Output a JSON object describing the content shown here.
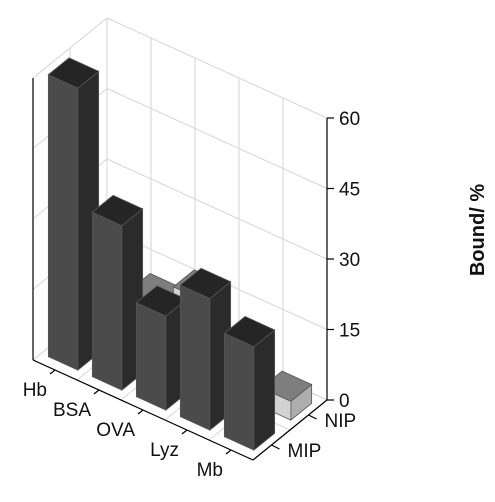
{
  "chart_data": {
    "type": "bar",
    "title": "",
    "zlabel": "Bound/ %",
    "zlim": [
      0,
      60
    ],
    "zticks": [
      "0",
      "15",
      "30",
      "45",
      "60"
    ],
    "categories": [
      "Hb",
      "BSA",
      "OVA",
      "Lyz",
      "Mb"
    ],
    "series": [
      {
        "name": "MIP",
        "color": "#333333",
        "values": [
          60,
          35,
          20,
          28,
          22
        ]
      },
      {
        "name": "NIP",
        "color": "#cccccc",
        "values": [
          10,
          12,
          17,
          5,
          4
        ]
      }
    ],
    "grid": true
  }
}
